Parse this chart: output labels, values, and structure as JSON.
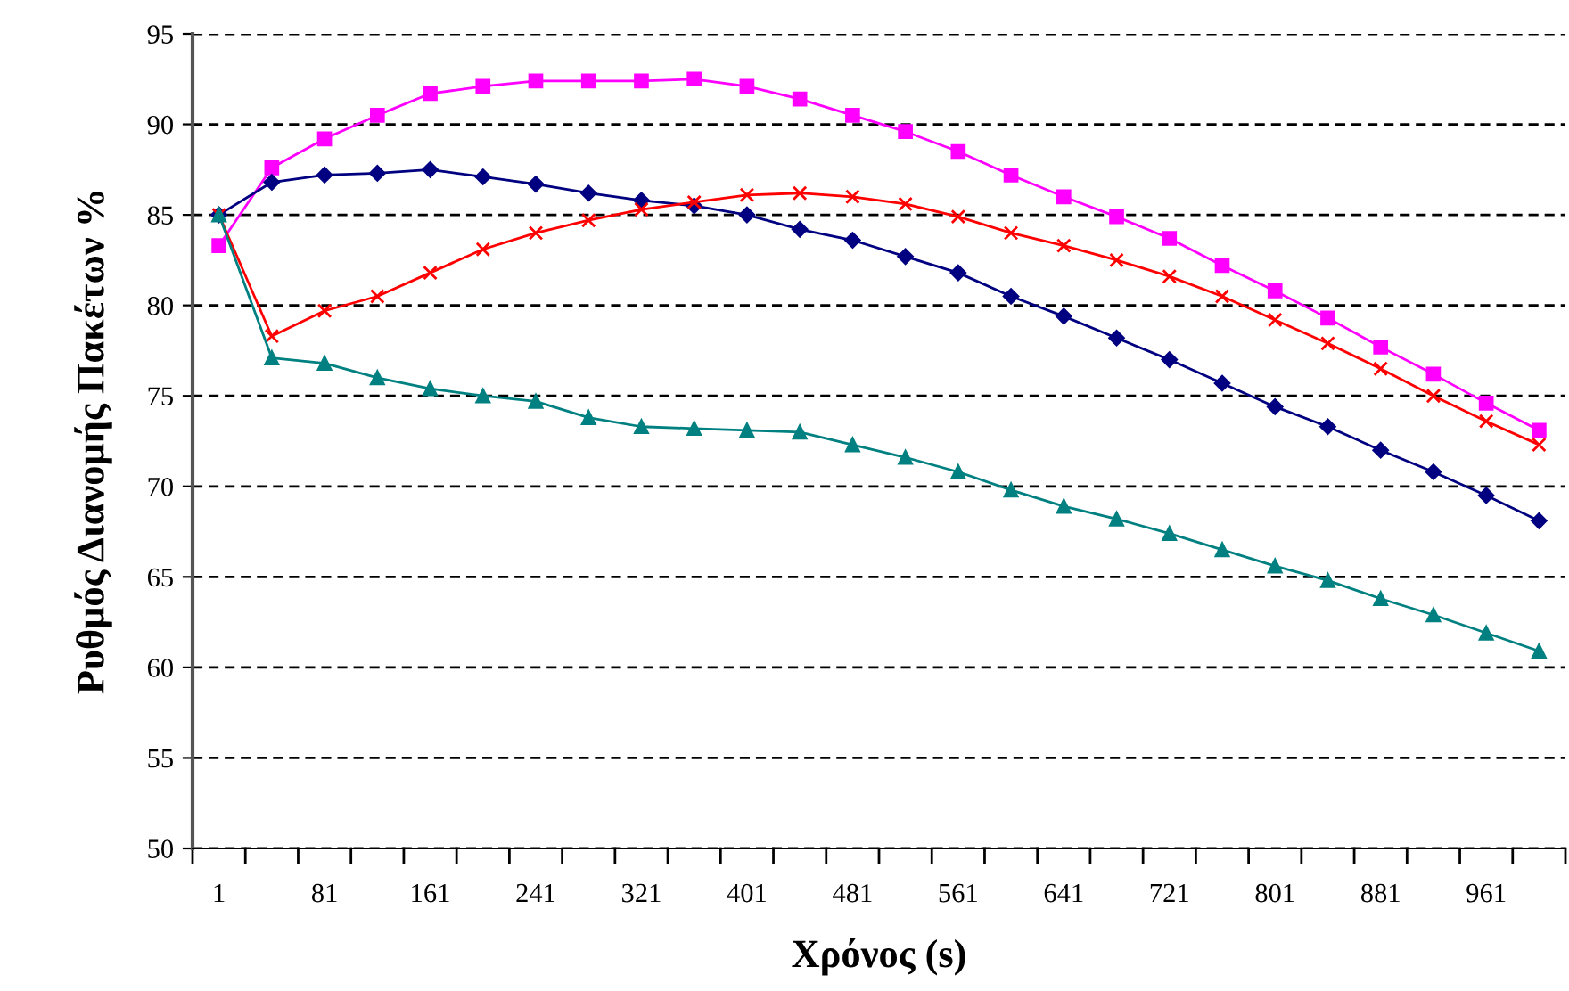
{
  "chart_data": {
    "type": "line",
    "xlabel": "Χρόνος (s)",
    "ylabel": "Ρυθμός Διανομής Πακέτων %",
    "categories": [
      "1",
      null,
      "81",
      null,
      "161",
      null,
      "241",
      null,
      "321",
      null,
      "401",
      null,
      "481",
      null,
      "561",
      null,
      "641",
      null,
      "721",
      null,
      "801",
      null,
      "881",
      null,
      "961",
      null
    ],
    "series": [
      {
        "color": "#ff00ff",
        "marker": "square",
        "values": [
          83.3,
          87.6,
          89.2,
          90.5,
          91.7,
          92.1,
          92.4,
          92.4,
          92.4,
          92.5,
          92.1,
          91.4,
          90.5,
          89.6,
          88.5,
          87.2,
          86.0,
          84.9,
          83.7,
          82.2,
          80.8,
          79.3,
          77.7,
          76.2,
          74.6,
          73.1
        ]
      },
      {
        "color": "#000080",
        "marker": "diamond",
        "values": [
          85.0,
          86.8,
          87.2,
          87.3,
          87.5,
          87.1,
          86.7,
          86.2,
          85.8,
          85.5,
          85.0,
          84.2,
          83.6,
          82.7,
          81.8,
          80.5,
          79.4,
          78.2,
          77.0,
          75.7,
          74.4,
          73.3,
          72.0,
          70.8,
          69.5,
          68.1
        ]
      },
      {
        "color": "#ff0000",
        "marker": "cross",
        "values": [
          85.0,
          78.3,
          79.7,
          80.5,
          81.8,
          83.1,
          84.0,
          84.7,
          85.3,
          85.7,
          86.1,
          86.2,
          86.0,
          85.6,
          84.9,
          84.0,
          83.3,
          82.5,
          81.6,
          80.5,
          79.2,
          77.9,
          76.5,
          75.0,
          73.6,
          72.3
        ]
      },
      {
        "color": "#008080",
        "marker": "triangle",
        "values": [
          85.0,
          77.1,
          76.8,
          76.0,
          75.4,
          75.0,
          74.7,
          73.8,
          73.3,
          73.2,
          73.1,
          73.0,
          72.3,
          71.6,
          70.8,
          69.8,
          68.9,
          68.2,
          67.4,
          66.5,
          65.6,
          64.8,
          63.8,
          62.9,
          61.9,
          60.9
        ]
      }
    ],
    "ylim": [
      50,
      95
    ],
    "yticks": [
      50,
      55,
      60,
      65,
      70,
      75,
      80,
      85,
      90,
      95
    ],
    "grid": "y",
    "legend": false
  }
}
